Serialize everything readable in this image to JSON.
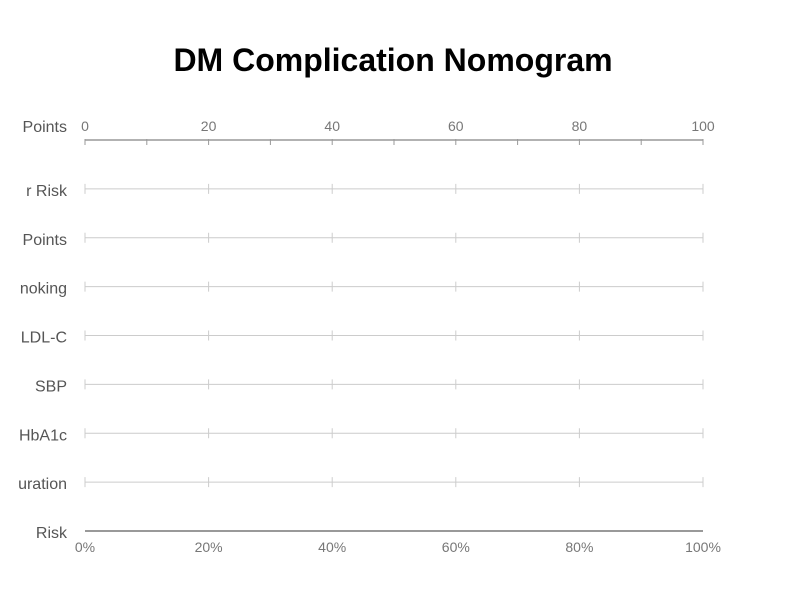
{
  "chart_data": {
    "type": "nomogram",
    "title": "DM Complication Nomogram",
    "rows": [
      {
        "label": "Points",
        "kind": "points-axis"
      },
      {
        "label": "r Risk",
        "kind": "scale"
      },
      {
        "label": "Points",
        "kind": "scale"
      },
      {
        "label": "noking",
        "kind": "scale"
      },
      {
        "label": "LDL-C",
        "kind": "scale"
      },
      {
        "label": "SBP",
        "kind": "scale"
      },
      {
        "label": "HbA1c",
        "kind": "scale"
      },
      {
        "label": "uration",
        "kind": "scale"
      },
      {
        "label": "Risk",
        "kind": "risk-axis"
      }
    ],
    "points_axis": {
      "range": [
        0,
        100
      ],
      "major_ticks": [
        0,
        20,
        40,
        60,
        80,
        100
      ],
      "minor_ticks": [
        10,
        30,
        50,
        70,
        90
      ],
      "tick_labels": [
        "0",
        "20",
        "40",
        "60",
        "80",
        "100"
      ]
    },
    "scale_ticks": [
      0,
      20,
      40,
      60,
      80,
      100
    ],
    "risk_axis": {
      "range": [
        0,
        100
      ],
      "ticks": [
        0,
        20,
        40,
        60,
        80,
        100
      ],
      "tick_labels": [
        "0%",
        "20%",
        "40%",
        "60%",
        "80%",
        "100%"
      ]
    },
    "colors": {
      "title": "#000000",
      "label": "#555555",
      "tick_label": "#777777",
      "axis_line": "#999999",
      "scale_line": "#cccccc"
    }
  }
}
